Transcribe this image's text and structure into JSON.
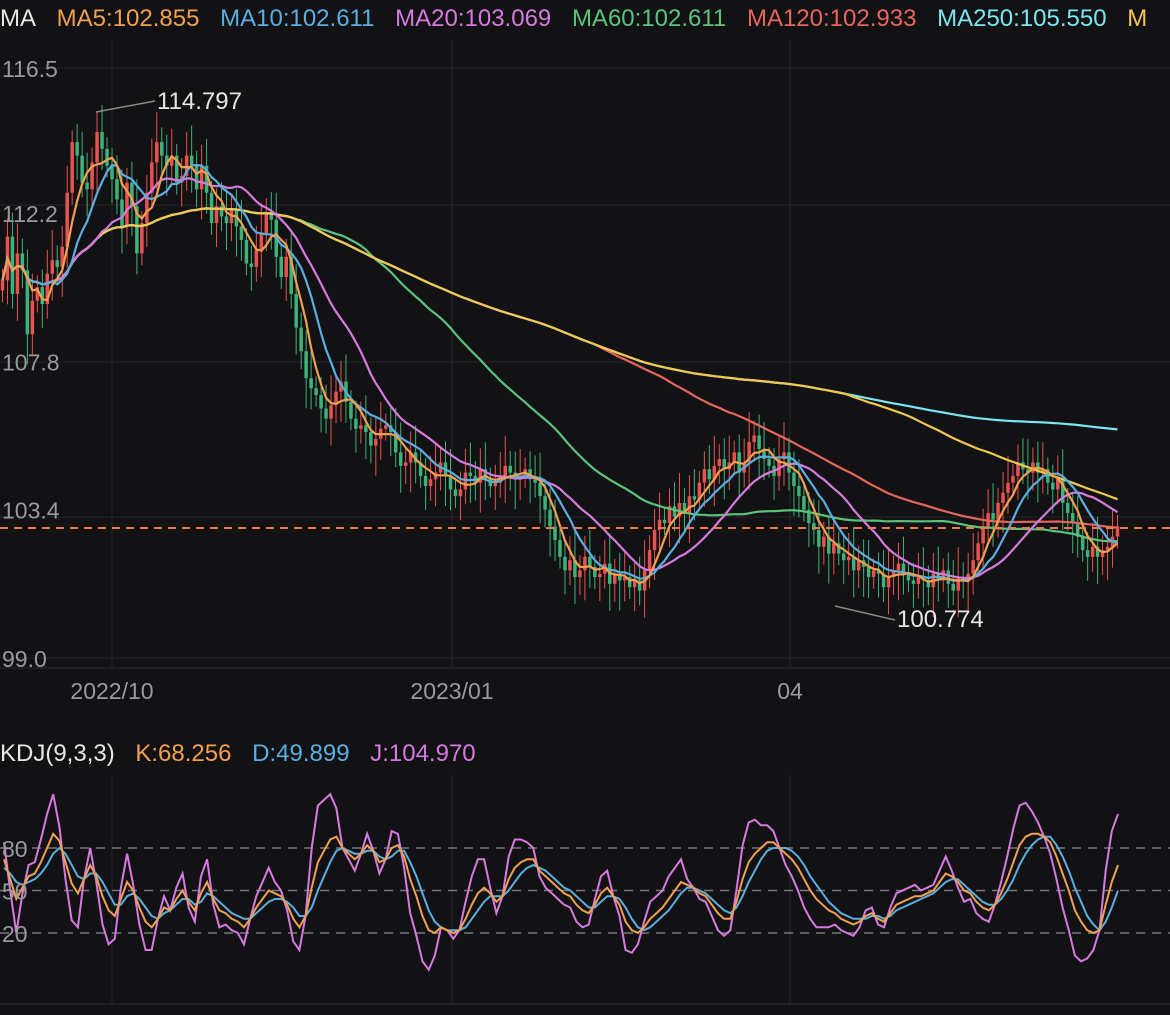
{
  "ma_legend": {
    "title": "MA",
    "items": [
      {
        "label": "MA5:102.855",
        "color": "#f0a050"
      },
      {
        "label": "MA10:102.611",
        "color": "#5aaee0"
      },
      {
        "label": "MA20:103.069",
        "color": "#d77ae0"
      },
      {
        "label": "MA60:102.611",
        "color": "#5cc37d"
      },
      {
        "label": "MA120:102.933",
        "color": "#e8655d"
      },
      {
        "label": "MA250:105.550",
        "color": "#7ae6f0"
      },
      {
        "label": "M",
        "color": "#f0c850"
      }
    ]
  },
  "kdj_legend": {
    "title": "KDJ(9,3,3)",
    "items": [
      {
        "label": "K:68.256",
        "color": "#f0a050"
      },
      {
        "label": "D:49.899",
        "color": "#5aaee0"
      },
      {
        "label": "J:104.970",
        "color": "#d77ae0"
      }
    ]
  },
  "chart_data": [
    {
      "type": "candlestick",
      "title": "",
      "ylim": [
        99.0,
        116.5
      ],
      "y_ticks": [
        "116.5",
        "112.2",
        "107.8",
        "103.4",
        "99.0"
      ],
      "x_ticks": [
        "2022/10",
        "2023/01",
        "04"
      ],
      "current_price": 102.855,
      "annotations": {
        "high": "114.797",
        "low": "100.774"
      },
      "colors": {
        "up": "#e8534f",
        "down": "#3db37a",
        "price_line": "#f07a4a"
      },
      "candles_close": [
        110.2,
        111.5,
        109.8,
        111.0,
        110.5,
        108.6,
        109.6,
        110.0,
        109.5,
        110.4,
        110.8,
        110.6,
        111.2,
        112.8,
        114.3,
        113.9,
        113.1,
        112.9,
        113.7,
        114.6,
        114.1,
        113.6,
        113.2,
        112.6,
        111.8,
        113.1,
        112.4,
        111.0,
        111.9,
        112.8,
        113.7,
        114.3,
        113.9,
        113.6,
        113.9,
        113.1,
        113.3,
        113.9,
        113.6,
        112.9,
        113.6,
        112.8,
        111.9,
        112.4,
        112.1,
        111.9,
        112.3,
        111.8,
        111.4,
        110.7,
        110.6,
        111.1,
        111.6,
        112.2,
        112.0,
        110.9,
        110.3,
        110.9,
        109.8,
        108.8,
        108.1,
        107.3,
        107.0,
        106.8,
        106.4,
        106.1,
        106.5,
        106.9,
        107.2,
        106.6,
        106.1,
        105.8,
        105.9,
        105.7,
        105.3,
        105.5,
        105.8,
        105.9,
        105.7,
        105.1,
        104.7,
        104.8,
        105.1,
        104.8,
        104.4,
        104.1,
        104.3,
        104.5,
        104.8,
        104.4,
        104.0,
        103.8,
        104.0,
        104.5,
        104.4,
        104.2,
        104.6,
        104.3,
        104.1,
        104.2,
        104.4,
        104.7,
        104.5,
        104.3,
        104.4,
        104.6,
        104.3,
        104.2,
        103.8,
        103.4,
        102.9,
        102.5,
        102.0,
        101.6,
        101.9,
        101.4,
        101.6,
        102.0,
        101.7,
        101.4,
        101.5,
        101.8,
        101.2,
        101.5,
        101.3,
        101.4,
        101.1,
        101.3,
        101.0,
        101.6,
        102.2,
        102.8,
        103.1,
        103.0,
        103.5,
        103.2,
        103.6,
        103.3,
        103.8,
        103.7,
        104.2,
        104.6,
        104.3,
        104.7,
        104.9,
        104.6,
        104.8,
        105.1,
        104.5,
        104.8,
        105.4,
        105.6,
        105.2,
        104.9,
        104.7,
        104.4,
        104.9,
        105.1,
        104.5,
        104.1,
        103.8,
        103.4,
        103.0,
        102.8,
        102.3,
        102.6,
        102.1,
        102.4,
        102.1,
        101.9,
        102.0,
        101.6,
        101.9,
        101.7,
        101.4,
        101.6,
        101.5,
        101.1,
        101.4,
        101.6,
        101.8,
        101.5,
        101.3,
        101.2,
        101.4,
        101.3,
        101.1,
        101.5,
        101.3,
        101.6,
        101.2,
        101.0,
        101.4,
        101.3,
        101.5,
        101.9,
        102.4,
        102.9,
        103.3,
        103.1,
        103.6,
        103.9,
        104.2,
        104.4,
        104.8,
        104.6,
        104.5,
        104.8,
        104.5,
        104.6,
        104.2,
        104.0,
        104.3,
        103.6,
        103.3,
        103.0,
        102.6,
        102.2,
        102.0,
        102.3,
        102.0,
        102.2,
        102.3,
        102.6,
        102.9
      ]
    },
    {
      "type": "line",
      "title": "",
      "ylim": [
        0,
        120
      ],
      "reference_lines": [
        80,
        50,
        20
      ],
      "y_ticks": [
        "80",
        "50",
        "20"
      ],
      "series": [
        {
          "name": "K",
          "color": "#f0a050",
          "values": [
            72,
            58,
            44,
            52,
            60,
            62,
            70,
            80,
            90,
            85,
            70,
            55,
            48,
            58,
            68,
            60,
            46,
            36,
            32,
            44,
            56,
            50,
            38,
            28,
            24,
            30,
            38,
            36,
            44,
            50,
            42,
            36,
            48,
            56,
            44,
            36,
            34,
            30,
            28,
            24,
            30,
            38,
            44,
            50,
            48,
            46,
            40,
            30,
            24,
            32,
            52,
            70,
            78,
            86,
            88,
            80,
            76,
            72,
            76,
            82,
            78,
            70,
            72,
            80,
            82,
            74,
            58,
            46,
            32,
            22,
            20,
            24,
            22,
            20,
            22,
            30,
            40,
            48,
            52,
            48,
            42,
            46,
            58,
            66,
            70,
            72,
            72,
            64,
            60,
            56,
            52,
            48,
            46,
            40,
            36,
            34,
            40,
            48,
            52,
            46,
            40,
            28,
            22,
            20,
            24,
            30,
            34,
            38,
            44,
            50,
            56,
            54,
            52,
            48,
            46,
            40,
            34,
            30,
            30,
            42,
            58,
            70,
            76,
            80,
            84,
            84,
            80,
            76,
            72,
            66,
            58,
            50,
            44,
            40,
            36,
            34,
            30,
            28,
            26,
            28,
            32,
            34,
            30,
            28,
            34,
            40,
            42,
            44,
            46,
            46,
            48,
            50,
            56,
            62,
            60,
            56,
            50,
            48,
            42,
            38,
            36,
            40,
            48,
            58,
            70,
            82,
            88,
            90,
            90,
            88,
            84,
            74,
            62,
            50,
            36,
            28,
            22,
            20,
            22,
            40,
            56,
            68
          ]
        },
        {
          "name": "D",
          "color": "#5aaee0",
          "values": [
            66,
            62,
            56,
            54,
            56,
            58,
            62,
            68,
            76,
            80,
            76,
            68,
            60,
            58,
            62,
            62,
            56,
            48,
            40,
            40,
            46,
            48,
            44,
            38,
            32,
            30,
            34,
            36,
            40,
            44,
            44,
            40,
            42,
            48,
            46,
            42,
            38,
            34,
            32,
            30,
            30,
            34,
            38,
            42,
            44,
            44,
            42,
            38,
            32,
            32,
            38,
            50,
            60,
            70,
            78,
            80,
            78,
            76,
            76,
            78,
            78,
            74,
            72,
            74,
            78,
            78,
            70,
            60,
            48,
            36,
            28,
            24,
            22,
            22,
            22,
            24,
            30,
            36,
            42,
            46,
            46,
            46,
            50,
            56,
            62,
            66,
            68,
            66,
            64,
            60,
            56,
            52,
            50,
            46,
            42,
            38,
            38,
            42,
            46,
            46,
            44,
            38,
            30,
            24,
            22,
            24,
            28,
            32,
            36,
            42,
            48,
            52,
            52,
            50,
            48,
            44,
            40,
            36,
            34,
            38,
            46,
            56,
            64,
            72,
            78,
            80,
            80,
            80,
            78,
            74,
            68,
            60,
            54,
            48,
            42,
            38,
            34,
            32,
            30,
            30,
            30,
            32,
            32,
            30,
            32,
            36,
            38,
            40,
            42,
            44,
            46,
            48,
            52,
            56,
            58,
            58,
            54,
            50,
            46,
            42,
            40,
            40,
            44,
            50,
            58,
            68,
            76,
            82,
            86,
            88,
            88,
            82,
            74,
            64,
            52,
            42,
            32,
            26,
            22,
            28,
            38,
            50
          ]
        },
        {
          "name": "J",
          "color": "#d77ae0",
          "values": [
            84,
            50,
            20,
            48,
            68,
            70,
            86,
            104,
            118,
            95,
            58,
            29,
            24,
            58,
            80,
            56,
            26,
            12,
            16,
            52,
            76,
            54,
            26,
            8,
            8,
            30,
            46,
            36,
            52,
            62,
            38,
            28,
            60,
            72,
            40,
            24,
            26,
            22,
            20,
            12,
            30,
            46,
            56,
            66,
            56,
            50,
            36,
            14,
            8,
            32,
            80,
            110,
            114,
            118,
            108,
            80,
            72,
            64,
            76,
            90,
            78,
            62,
            72,
            92,
            90,
            66,
            34,
            18,
            0,
            -6,
            4,
            24,
            22,
            16,
            22,
            42,
            60,
            72,
            72,
            52,
            34,
            46,
            74,
            86,
            86,
            84,
            80,
            60,
            52,
            48,
            44,
            40,
            38,
            28,
            24,
            26,
            44,
            60,
            64,
            46,
            32,
            8,
            6,
            12,
            28,
            42,
            46,
            50,
            60,
            66,
            72,
            58,
            52,
            44,
            42,
            32,
            22,
            18,
            22,
            50,
            82,
            98,
            100,
            96,
            96,
            92,
            80,
            68,
            60,
            50,
            38,
            30,
            24,
            24,
            24,
            26,
            22,
            20,
            18,
            24,
            36,
            38,
            26,
            24,
            38,
            48,
            50,
            52,
            54,
            50,
            52,
            54,
            64,
            74,
            64,
            52,
            42,
            44,
            34,
            30,
            28,
            40,
            56,
            74,
            94,
            110,
            112,
            106,
            98,
            88,
            76,
            58,
            38,
            22,
            4,
            0,
            2,
            8,
            22,
            64,
            92,
            104
          ]
        }
      ]
    }
  ]
}
